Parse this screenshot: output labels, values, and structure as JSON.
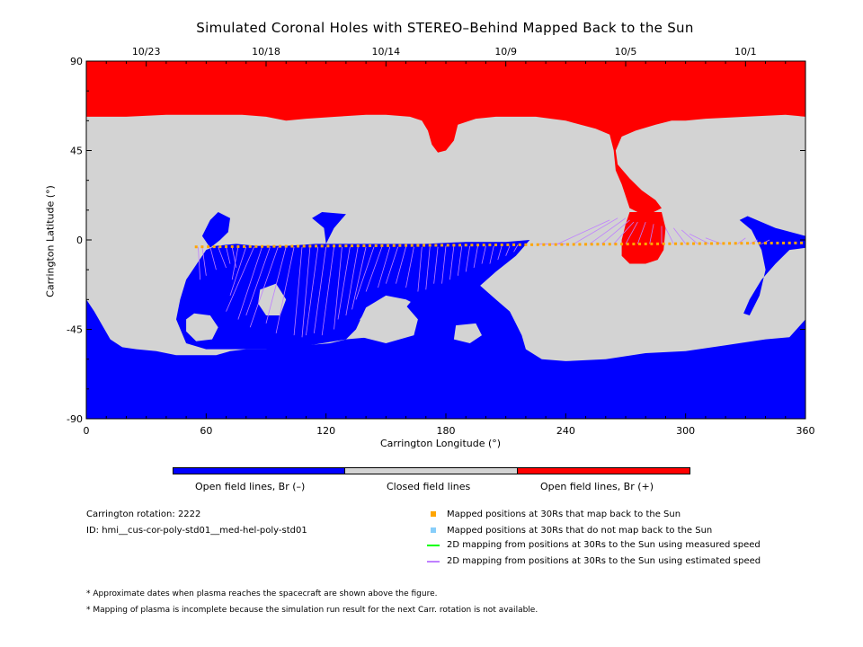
{
  "chart_data": {
    "type": "heatmap",
    "title": "Simulated Coronal Holes with STEREO–Behind Mapped Back to the Sun",
    "xlabel": "Carrington Longitude (°)",
    "ylabel": "Carrington Latitude (°)",
    "xlim": [
      0,
      360
    ],
    "ylim": [
      -90,
      90
    ],
    "x_ticks": [
      0,
      60,
      120,
      180,
      240,
      300,
      360
    ],
    "y_ticks": [
      -90,
      -45,
      0,
      45,
      90
    ],
    "top_date_ticks": [
      {
        "label": "10/23",
        "lon": 30
      },
      {
        "label": "10/18",
        "lon": 90
      },
      {
        "label": "10/14",
        "lon": 150
      },
      {
        "label": "10/9",
        "lon": 210
      },
      {
        "label": "10/5",
        "lon": 270
      },
      {
        "label": "10/1",
        "lon": 330
      }
    ],
    "colorbar": [
      {
        "label": "Open field lines, Br (–)",
        "color": "#0000ff"
      },
      {
        "label": "Closed field lines",
        "color": "#d3d3d3"
      },
      {
        "label": "Open field lines, Br (+)",
        "color": "#ff0000"
      }
    ],
    "regions": {
      "positive_north_cap": [
        [
          0,
          90
        ],
        [
          360,
          90
        ],
        [
          360,
          62
        ],
        [
          350,
          63
        ],
        [
          330,
          62
        ],
        [
          310,
          61
        ],
        [
          300,
          60
        ],
        [
          293,
          60
        ],
        [
          285,
          58
        ],
        [
          275,
          55
        ],
        [
          268,
          52
        ],
        [
          265,
          45
        ],
        [
          266,
          38
        ],
        [
          272,
          31
        ],
        [
          278,
          25
        ],
        [
          285,
          20
        ],
        [
          288,
          16
        ],
        [
          284,
          14
        ],
        [
          278,
          13
        ],
        [
          272,
          16
        ],
        [
          270,
          22
        ],
        [
          268,
          28
        ],
        [
          265,
          35
        ],
        [
          264,
          45
        ],
        [
          262,
          53
        ],
        [
          255,
          56
        ],
        [
          240,
          60
        ],
        [
          225,
          62
        ],
        [
          205,
          62
        ],
        [
          195,
          61
        ],
        [
          186,
          58
        ],
        [
          184,
          50
        ],
        [
          180,
          45
        ],
        [
          176,
          44
        ],
        [
          173,
          48
        ],
        [
          171,
          55
        ],
        [
          168,
          60
        ],
        [
          162,
          62
        ],
        [
          150,
          63
        ],
        [
          140,
          63
        ],
        [
          125,
          62
        ],
        [
          110,
          61
        ],
        [
          100,
          60
        ],
        [
          90,
          62
        ],
        [
          78,
          63
        ],
        [
          60,
          63
        ],
        [
          40,
          63
        ],
        [
          20,
          62
        ],
        [
          10,
          62
        ],
        [
          0,
          62
        ]
      ],
      "positive_low_patch": [
        [
          272,
          14
        ],
        [
          288,
          14
        ],
        [
          290,
          6
        ],
        [
          289,
          -5
        ],
        [
          286,
          -10
        ],
        [
          280,
          -12
        ],
        [
          272,
          -12
        ],
        [
          268,
          -8
        ],
        [
          268,
          0
        ],
        [
          270,
          8
        ]
      ],
      "negative_south_cap": [
        [
          0,
          -90
        ],
        [
          360,
          -90
        ],
        [
          360,
          -40
        ],
        [
          352,
          -49
        ],
        [
          340,
          -50
        ],
        [
          320,
          -53
        ],
        [
          300,
          -56
        ],
        [
          280,
          -57
        ],
        [
          260,
          -60
        ],
        [
          240,
          -61
        ],
        [
          228,
          -60
        ],
        [
          220,
          -55
        ],
        [
          218,
          -48
        ],
        [
          215,
          -42
        ],
        [
          212,
          -36
        ],
        [
          205,
          -30
        ],
        [
          196,
          -22
        ],
        [
          188,
          -18
        ],
        [
          178,
          -18
        ],
        [
          172,
          -20
        ],
        [
          165,
          -28
        ],
        [
          160,
          -34
        ],
        [
          156,
          -42
        ],
        [
          150,
          -47
        ],
        [
          142,
          -49
        ],
        [
          130,
          -50
        ],
        [
          122,
          -52
        ],
        [
          110,
          -53
        ],
        [
          100,
          -54
        ],
        [
          90,
          -55
        ],
        [
          80,
          -55
        ],
        [
          72,
          -56
        ],
        [
          65,
          -58
        ],
        [
          55,
          -58
        ],
        [
          45,
          -58
        ],
        [
          35,
          -56
        ],
        [
          25,
          -55
        ],
        [
          18,
          -54
        ],
        [
          12,
          -50
        ],
        [
          8,
          -43
        ],
        [
          4,
          -36
        ],
        [
          0,
          -30
        ]
      ],
      "negative_main_lobe": [
        [
          50,
          -20
        ],
        [
          60,
          -5
        ],
        [
          65,
          -3
        ],
        [
          75,
          -2
        ],
        [
          85,
          -3
        ],
        [
          100,
          -3
        ],
        [
          115,
          -2
        ],
        [
          130,
          -2
        ],
        [
          150,
          -2
        ],
        [
          170,
          -2
        ],
        [
          190,
          -1
        ],
        [
          210,
          -1
        ],
        [
          222,
          0
        ],
        [
          215,
          -8
        ],
        [
          205,
          -16
        ],
        [
          196,
          -24
        ],
        [
          188,
          -30
        ],
        [
          178,
          -34
        ],
        [
          168,
          -34
        ],
        [
          160,
          -30
        ],
        [
          150,
          -28
        ],
        [
          140,
          -34
        ],
        [
          135,
          -45
        ],
        [
          130,
          -50
        ],
        [
          100,
          -55
        ],
        [
          80,
          -55
        ],
        [
          60,
          -55
        ],
        [
          50,
          -52
        ],
        [
          45,
          -40
        ],
        [
          47,
          -30
        ]
      ],
      "negative_west_blob": [
        [
          62,
          10
        ],
        [
          66,
          14
        ],
        [
          72,
          11
        ],
        [
          71,
          4
        ],
        [
          67,
          0
        ],
        [
          62,
          -4
        ],
        [
          58,
          2
        ]
      ],
      "negative_stalk": [
        [
          113,
          11
        ],
        [
          118,
          14
        ],
        [
          130,
          13
        ],
        [
          124,
          6
        ],
        [
          120,
          -2
        ],
        [
          115,
          -10
        ],
        [
          110,
          -22
        ],
        [
          106,
          -35
        ],
        [
          103,
          -47
        ],
        [
          108,
          -48
        ],
        [
          112,
          -36
        ],
        [
          116,
          -22
        ],
        [
          120,
          -12
        ],
        [
          120,
          -2
        ],
        [
          119,
          6
        ]
      ],
      "negative_east_ridge": [
        [
          327,
          10
        ],
        [
          331,
          12
        ],
        [
          345,
          6
        ],
        [
          360,
          2
        ],
        [
          360,
          -4
        ],
        [
          352,
          -5
        ],
        [
          345,
          -12
        ],
        [
          338,
          -20
        ],
        [
          332,
          -30
        ],
        [
          329,
          -37
        ],
        [
          332,
          -38
        ],
        [
          337,
          -28
        ],
        [
          340,
          -15
        ],
        [
          338,
          -5
        ],
        [
          333,
          5
        ]
      ],
      "negative_east_edge": [
        [
          358,
          -45
        ],
        [
          360,
          -44
        ],
        [
          360,
          -55
        ],
        [
          357,
          -55
        ]
      ],
      "closed_holes": [
        [
          [
            54,
            -37
          ],
          [
            62,
            -38
          ],
          [
            66,
            -44
          ],
          [
            63,
            -50
          ],
          [
            55,
            -51
          ],
          [
            50,
            -46
          ],
          [
            50,
            -40
          ]
        ],
        [
          [
            20,
            -41
          ],
          [
            28,
            -41
          ],
          [
            34,
            -46
          ],
          [
            30,
            -53
          ],
          [
            22,
            -54
          ],
          [
            16,
            -49
          ],
          [
            16,
            -44
          ]
        ],
        [
          [
            142,
            -33
          ],
          [
            160,
            -33
          ],
          [
            166,
            -40
          ],
          [
            164,
            -48
          ],
          [
            150,
            -52
          ],
          [
            138,
            -49
          ],
          [
            137,
            -40
          ]
        ],
        [
          [
            185,
            -43
          ],
          [
            195,
            -42
          ],
          [
            198,
            -48
          ],
          [
            192,
            -52
          ],
          [
            184,
            -50
          ]
        ],
        [
          [
            87,
            -25
          ],
          [
            95,
            -22
          ],
          [
            100,
            -30
          ],
          [
            97,
            -38
          ],
          [
            90,
            -38
          ],
          [
            86,
            -32
          ]
        ]
      ]
    },
    "trajectory_points_lon": [
      55,
      58,
      61,
      64,
      67,
      70,
      73,
      76,
      79,
      82,
      85,
      88,
      91,
      94,
      97,
      100,
      103,
      106,
      109,
      112,
      115,
      118,
      121,
      124,
      127,
      130,
      133,
      136,
      139,
      142,
      145,
      148,
      151,
      154,
      157,
      160,
      163,
      166,
      169,
      172,
      175,
      178,
      181,
      184,
      187,
      190,
      193,
      196,
      199,
      202,
      205,
      208,
      211,
      214,
      217,
      220,
      223,
      226,
      229,
      232,
      235,
      238,
      241,
      244,
      247,
      250,
      253,
      256,
      259,
      262,
      265,
      268,
      271,
      274,
      277,
      280,
      283,
      286,
      289,
      292,
      295,
      298,
      301,
      304,
      307,
      310,
      313,
      316,
      319,
      322,
      325,
      328,
      331,
      334,
      337,
      340,
      343,
      346,
      349,
      352,
      355,
      358
    ],
    "trajectory_start_lat": -3.5,
    "trajectory_end_lat": -1.5,
    "estimated_mapping_lines": [
      [
        56,
        -3.5,
        57,
        -20
      ],
      [
        58,
        -3.5,
        60,
        -18
      ],
      [
        62,
        -3.5,
        65,
        -15
      ],
      [
        66,
        -3.5,
        70,
        -14
      ],
      [
        70,
        -3.5,
        72,
        -12
      ],
      [
        73,
        -3.5,
        75,
        -14
      ],
      [
        76,
        -3.5,
        73,
        -20
      ],
      [
        80,
        -3.5,
        72,
        -28
      ],
      [
        84,
        -3.5,
        70,
        -36
      ],
      [
        88,
        -3.5,
        76,
        -40
      ],
      [
        92,
        -3.5,
        80,
        -38
      ],
      [
        96,
        -3.5,
        82,
        -44
      ],
      [
        100,
        -3.5,
        90,
        -42
      ],
      [
        104,
        -3.5,
        95,
        -47
      ],
      [
        108,
        -3.5,
        104,
        -48
      ],
      [
        112,
        -3.5,
        108,
        -49
      ],
      [
        116,
        -3.5,
        110,
        -48
      ],
      [
        120,
        -3.5,
        114,
        -47
      ],
      [
        124,
        -3.5,
        118,
        -48
      ],
      [
        128,
        -3.5,
        124,
        -45
      ],
      [
        132,
        -3.5,
        126,
        -40
      ],
      [
        136,
        -3.5,
        130,
        -38
      ],
      [
        140,
        -3.5,
        133,
        -35
      ],
      [
        144,
        -3.5,
        135,
        -30
      ],
      [
        148,
        -3.5,
        140,
        -26
      ],
      [
        152,
        -3.5,
        146,
        -24
      ],
      [
        156,
        -3.5,
        150,
        -22
      ],
      [
        160,
        -3.5,
        155,
        -22
      ],
      [
        164,
        -3.5,
        160,
        -24
      ],
      [
        168,
        -3.5,
        166,
        -26
      ],
      [
        172,
        -3.5,
        170,
        -25
      ],
      [
        176,
        -3.5,
        174,
        -22
      ],
      [
        180,
        -3,
        178,
        -22
      ],
      [
        184,
        -3,
        182,
        -20
      ],
      [
        188,
        -3,
        186,
        -18
      ],
      [
        192,
        -3,
        190,
        -16
      ],
      [
        196,
        -3,
        194,
        -14
      ],
      [
        200,
        -3,
        198,
        -12
      ],
      [
        204,
        -3,
        202,
        -12
      ],
      [
        208,
        -3,
        206,
        -10
      ],
      [
        212,
        -3,
        210,
        -8
      ],
      [
        216,
        -2.5,
        214,
        -6
      ],
      [
        226,
        -2,
        240,
        -2
      ],
      [
        236,
        -2,
        262,
        10
      ],
      [
        244,
        -2,
        266,
        11
      ],
      [
        252,
        -2,
        270,
        11
      ],
      [
        258,
        -2,
        272,
        10
      ],
      [
        264,
        -2,
        274,
        9
      ],
      [
        270,
        -2,
        276,
        9
      ],
      [
        276,
        -2,
        280,
        9
      ],
      [
        282,
        -2,
        284,
        8
      ],
      [
        288,
        -2,
        288,
        7
      ],
      [
        294,
        -2,
        290,
        6
      ],
      [
        300,
        -2,
        294,
        6
      ],
      [
        306,
        -2,
        298,
        5
      ],
      [
        312,
        -2,
        302,
        3
      ],
      [
        318,
        -2,
        310,
        1
      ],
      [
        326,
        -2,
        330,
        1
      ],
      [
        332,
        -2,
        336,
        0
      ],
      [
        338,
        -2,
        342,
        0
      ]
    ]
  },
  "notes": {
    "rotation": "Carrington rotation: 2222",
    "id": "ID: hmi__cus-cor-poly-std01__med-hel-poly-std01",
    "footnote1": "* Approximate dates when plasma reaches the spacecraft are shown above the figure.",
    "footnote2": "* Mapping of plasma is incomplete because the simulation run result for the next Carr. rotation is not available."
  },
  "legend": [
    {
      "label": "Mapped positions at 30Rs that map back to the Sun",
      "color": "#ffa500",
      "shape": "square"
    },
    {
      "label": "Mapped positions at 30Rs that do not map back to the Sun",
      "color": "#87cefa",
      "shape": "square"
    },
    {
      "label": "2D mapping from positions at 30Rs to the Sun using measured speed",
      "color": "#00ff00",
      "shape": "line"
    },
    {
      "label": "2D mapping from positions at 30Rs to the Sun using estimated speed",
      "color": "#bf80ff",
      "shape": "line"
    }
  ]
}
